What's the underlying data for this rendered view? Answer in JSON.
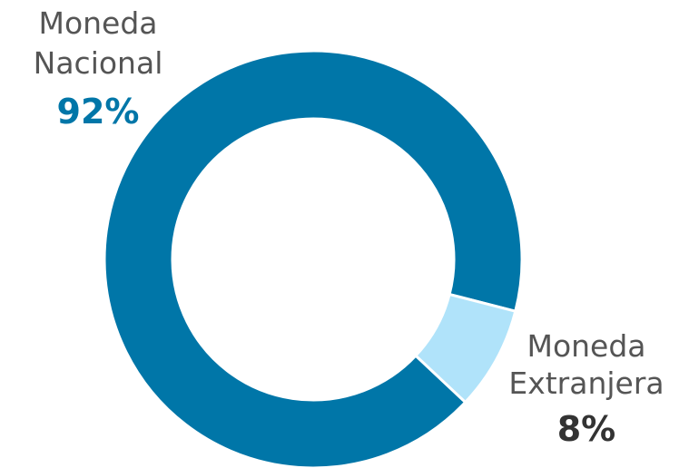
{
  "chart_data": {
    "type": "pie",
    "style": "donut",
    "title": "",
    "slices": [
      {
        "name": "Moneda Nacional",
        "line1": "Moneda",
        "line2": "Nacional",
        "value": 92,
        "value_label": "92%",
        "color": "#0076A8",
        "label_value_color": "#0076A8"
      },
      {
        "name": "Moneda Extranjera",
        "line1": "Moneda",
        "line2": "Extranjera",
        "value": 8,
        "value_label": "8%",
        "color": "#B0E3FA",
        "label_value_color": "#333333"
      }
    ],
    "legend": "none"
  }
}
